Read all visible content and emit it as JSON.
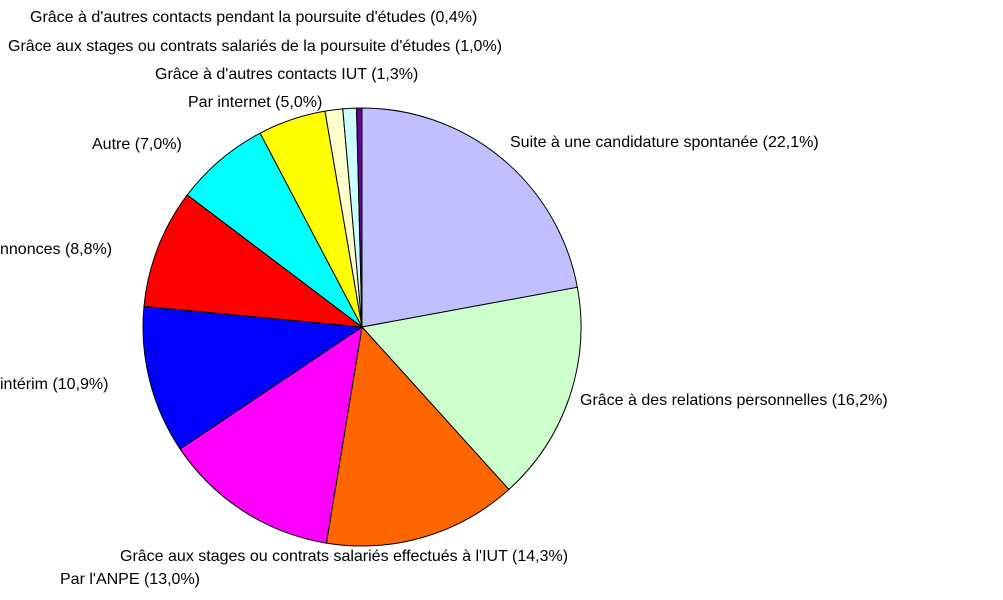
{
  "chart_data": {
    "type": "pie",
    "categories": [
      "Suite à une candidature spontanée (22,1%)",
      "Grâce à des relations personnelles (16,2%)",
      "Grâce aux stages ou contrats salariés effectués à l'IUT (14,3%)",
      "Par l'ANPE (13,0%)",
      "intérim (10,9%)",
      "nnonces (8,8%)",
      "Autre (7,0%)",
      "Par internet (5,0%)",
      "Grâce à d'autres contacts IUT (1,3%)",
      "Grâce aux stages ou contrats salariés de la poursuite d'études (1,0%)",
      "Grâce à d'autres contacts pendant la poursuite d'études (0,4%)"
    ],
    "values": [
      22.1,
      16.2,
      14.3,
      13.0,
      10.9,
      8.8,
      7.0,
      5.0,
      1.3,
      1.0,
      0.4
    ],
    "colors": [
      "#c0c0ff",
      "#ccffcc",
      "#ff6600",
      "#ff00ff",
      "#0000ff",
      "#ff0000",
      "#00ffff",
      "#ffff00",
      "#ffffcc",
      "#ccffff",
      "#660099"
    ]
  }
}
